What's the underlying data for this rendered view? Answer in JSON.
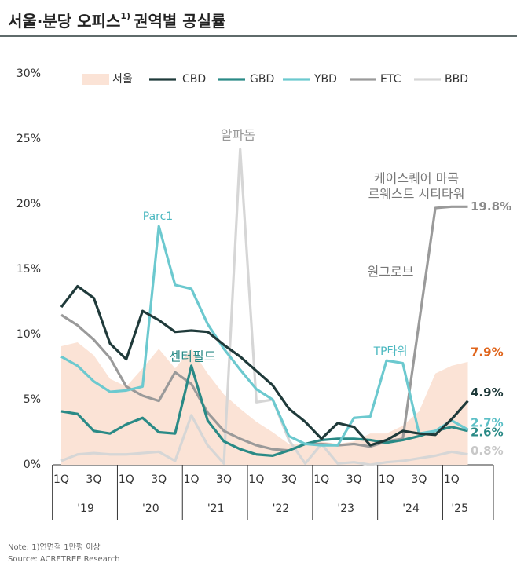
{
  "chart_data": {
    "type": "line",
    "title": "서울·분당 오피스",
    "title_sup": "1)",
    "title_rest": "권역별 공실률",
    "note": "Note: 1)연면적 1만평 이상",
    "source": "Source: ACRETREE Research",
    "categories": [
      "1Q",
      null,
      "3Q",
      null,
      "1Q",
      null,
      "3Q",
      null,
      "1Q",
      null,
      "3Q",
      null,
      "1Q",
      null,
      "3Q",
      null,
      "1Q",
      null,
      "3Q",
      null,
      "1Q",
      null,
      "3Q",
      null,
      "1Q",
      null
    ],
    "year_labels": [
      "'19",
      "'20",
      "'21",
      "'22",
      "'23",
      "'24",
      "'25"
    ],
    "ylim": [
      0,
      30
    ],
    "yticks": [
      {
        "value": 0,
        "label": "0%"
      },
      {
        "value": 5,
        "label": "5%"
      },
      {
        "value": 10,
        "label": "10%"
      },
      {
        "value": 15,
        "label": "15%"
      },
      {
        "value": 20,
        "label": "20%"
      },
      {
        "value": 25,
        "label": "25%"
      },
      {
        "value": 30,
        "label": "30%"
      }
    ],
    "series": [
      {
        "name": "서울",
        "kind": "area",
        "color": "#fbe3d6",
        "label_color": "#e0651c",
        "values": [
          9.1,
          9.4,
          8.4,
          6.6,
          6.0,
          7.4,
          8.9,
          7.4,
          8.9,
          7.0,
          5.4,
          4.3,
          3.3,
          2.5,
          1.6,
          1.6,
          1.8,
          1.6,
          1.8,
          2.4,
          2.4,
          3.0,
          4.1,
          7.0,
          7.6,
          7.9
        ],
        "value_labels": [
          null,
          null,
          null,
          null,
          null,
          null,
          null,
          null,
          null,
          null,
          null,
          null,
          null,
          null,
          null,
          null,
          null,
          null,
          null,
          null,
          null,
          null,
          null,
          null,
          null,
          "7.9%"
        ]
      },
      {
        "name": "CBD",
        "kind": "line",
        "color": "#1f3a3a",
        "label_color": "#1f3a3a",
        "values": [
          12.1,
          13.7,
          12.8,
          9.3,
          8.1,
          11.8,
          11.1,
          10.2,
          10.3,
          10.2,
          9.2,
          8.3,
          7.2,
          6.1,
          4.3,
          3.3,
          2.0,
          3.2,
          2.9,
          1.5,
          1.9,
          2.6,
          2.4,
          2.3,
          3.5,
          4.9
        ],
        "value_labels": [
          null,
          null,
          null,
          null,
          null,
          null,
          null,
          null,
          null,
          null,
          null,
          null,
          null,
          null,
          null,
          null,
          null,
          null,
          null,
          null,
          null,
          null,
          null,
          null,
          null,
          "4.9%"
        ]
      },
      {
        "name": "GBD",
        "kind": "line",
        "color": "#2a8a86",
        "label_color": "#2a8a86",
        "values": [
          4.1,
          3.9,
          2.6,
          2.4,
          3.1,
          3.6,
          2.5,
          2.4,
          7.6,
          3.4,
          1.8,
          1.2,
          0.8,
          0.7,
          1.1,
          1.6,
          1.9,
          2.0,
          2.0,
          1.9,
          1.7,
          1.9,
          2.2,
          2.6,
          2.9,
          2.6
        ],
        "value_labels": [
          null,
          null,
          null,
          null,
          null,
          null,
          null,
          null,
          null,
          null,
          null,
          null,
          null,
          null,
          null,
          null,
          null,
          null,
          null,
          null,
          null,
          null,
          null,
          null,
          null,
          "2.6%"
        ]
      },
      {
        "name": "YBD",
        "kind": "line",
        "color": "#6cc9cf",
        "label_color": "#5bbfc6",
        "values": [
          8.3,
          7.6,
          6.4,
          5.6,
          5.7,
          6.0,
          18.3,
          13.8,
          13.5,
          10.8,
          8.9,
          7.3,
          5.8,
          5.0,
          2.2,
          1.6,
          1.5,
          1.5,
          3.6,
          3.7,
          8.0,
          7.8,
          2.4,
          2.6,
          3.4,
          2.7
        ],
        "value_labels": [
          null,
          null,
          null,
          null,
          null,
          null,
          null,
          null,
          null,
          null,
          null,
          null,
          null,
          null,
          null,
          null,
          null,
          null,
          null,
          null,
          null,
          null,
          null,
          null,
          null,
          "2.7%"
        ]
      },
      {
        "name": "ETC",
        "kind": "line",
        "color": "#9a9a9a",
        "label_color": "#8a8a8a",
        "values": [
          11.5,
          10.7,
          9.6,
          8.2,
          6.0,
          5.3,
          4.9,
          7.1,
          6.2,
          4.0,
          2.6,
          2.0,
          1.5,
          1.2,
          1.1,
          1.6,
          1.6,
          1.5,
          1.6,
          1.4,
          1.8,
          2.0,
          10.9,
          19.7,
          19.8,
          19.8
        ],
        "value_labels": [
          null,
          null,
          null,
          null,
          null,
          null,
          null,
          null,
          null,
          null,
          null,
          null,
          null,
          null,
          null,
          null,
          null,
          null,
          null,
          null,
          null,
          null,
          null,
          null,
          null,
          "19.8%"
        ]
      },
      {
        "name": "BBD",
        "kind": "line",
        "color": "#d6d6d6",
        "label_color": "#c8c8c8",
        "values": [
          0.3,
          0.8,
          0.9,
          0.8,
          0.8,
          0.9,
          1.0,
          0.3,
          3.8,
          1.5,
          0.1,
          24.2,
          4.8,
          5.0,
          1.9,
          0.1,
          1.6,
          0.1,
          0.2,
          0.0,
          0.2,
          0.3,
          0.5,
          0.7,
          1.0,
          0.8
        ],
        "value_labels": [
          null,
          null,
          null,
          null,
          null,
          null,
          null,
          null,
          null,
          null,
          null,
          null,
          null,
          null,
          null,
          null,
          null,
          null,
          null,
          null,
          null,
          null,
          null,
          null,
          null,
          "0.8%"
        ]
      }
    ],
    "annotations": [
      {
        "lines": [
          "알파돔"
        ],
        "color": "#999999"
      },
      {
        "lines": [
          "Parc1"
        ],
        "color": "#4bb8c0"
      },
      {
        "lines": [
          "센터필드"
        ],
        "color": "#2a8a86"
      },
      {
        "lines": [
          "TP타워"
        ],
        "color": "#4bb8c0"
      },
      {
        "lines": [
          "케이스퀘어 마곡",
          "르웨스트 시티타워"
        ],
        "color": "#777777"
      },
      {
        "lines": [
          "원그로브"
        ],
        "color": "#777777"
      }
    ]
  }
}
